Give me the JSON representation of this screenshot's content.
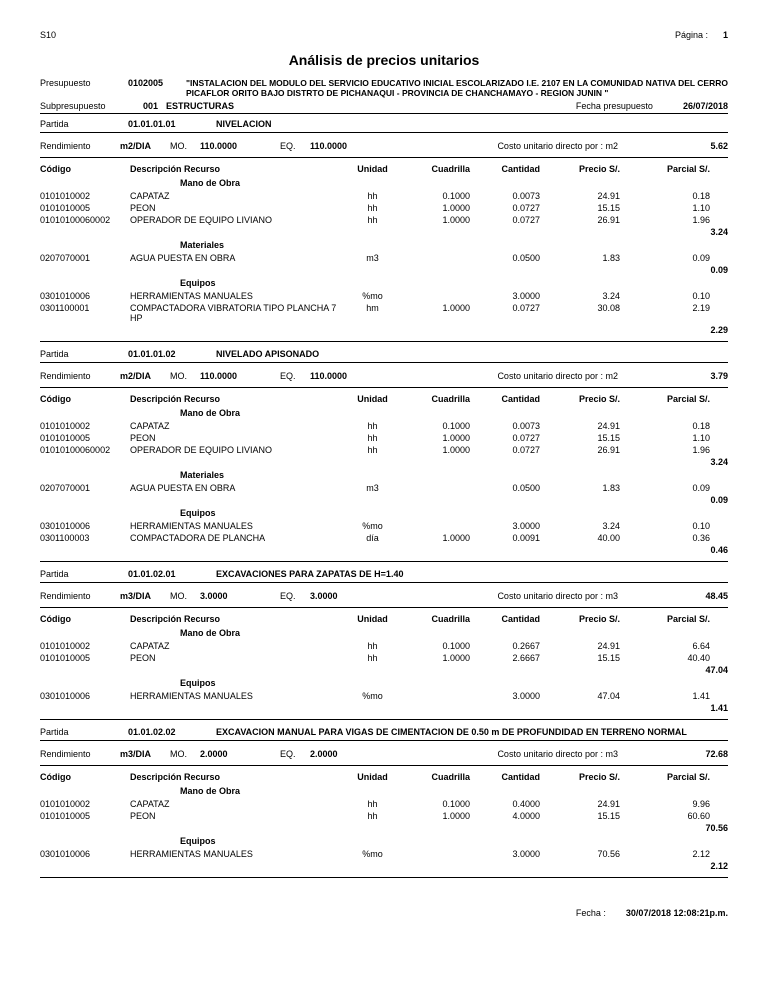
{
  "header": {
    "s10": "S10",
    "pagina_lbl": "Página :",
    "pagina_num": "1",
    "title": "Análisis de precios unitarios",
    "presupuesto_lbl": "Presupuesto",
    "presupuesto_code": "0102005",
    "presupuesto_text": "\"INSTALACION DEL MODULO DEL SERVICIO EDUCATIVO INICIAL ESCOLARIZADO I.E. 2107 EN LA COMUNIDAD NATIVA DEL CERRO PICAFLOR ORITO BAJO DISTRTO DE PICHANAQUI - PROVINCIA DE CHANCHAMAYO - REGION JUNIN \"",
    "sub_lbl": "Subpresupuesto",
    "sub_code": "001",
    "sub_text": "ESTRUCTURAS",
    "fecha_lbl": "Fecha presupuesto",
    "fecha_val": "26/07/2018"
  },
  "labels": {
    "partida": "Partida",
    "rendimiento": "Rendimiento",
    "mo": "MO.",
    "eq": "EQ.",
    "costo_directo": "Costo unitario directo por :",
    "codigo": "Código",
    "descripcion": "Descripción Recurso",
    "unidad": "Unidad",
    "cuadrilla": "Cuadrilla",
    "cantidad": "Cantidad",
    "precio": "Precio S/.",
    "parcial": "Parcial S/.",
    "mano_obra": "Mano de Obra",
    "materiales": "Materiales",
    "equipos": "Equipos"
  },
  "partidas": [
    {
      "code": "01.01.01.01",
      "title": "NIVELACION",
      "unidad_rend": "m2/DIA",
      "mo": "110.0000",
      "eq": "110.0000",
      "costo_unit": "m2",
      "total": "5.62",
      "groups": [
        {
          "cat": "mano_obra",
          "rows": [
            {
              "cod": "0101010002",
              "desc": "CAPATAZ",
              "u": "hh",
              "cuad": "0.1000",
              "cant": "0.0073",
              "prec": "24.91",
              "parc": "0.18"
            },
            {
              "cod": "0101010005",
              "desc": "PEON",
              "u": "hh",
              "cuad": "1.0000",
              "cant": "0.0727",
              "prec": "15.15",
              "parc": "1.10"
            },
            {
              "cod": "01010100060002",
              "desc": "OPERADOR DE EQUIPO LIVIANO",
              "u": "hh",
              "cuad": "1.0000",
              "cant": "0.0727",
              "prec": "26.91",
              "parc": "1.96"
            }
          ],
          "sub": "3.24"
        },
        {
          "cat": "materiales",
          "rows": [
            {
              "cod": "0207070001",
              "desc": "AGUA PUESTA EN OBRA",
              "u": "m3",
              "cuad": "",
              "cant": "0.0500",
              "prec": "1.83",
              "parc": "0.09"
            }
          ],
          "sub": "0.09"
        },
        {
          "cat": "equipos",
          "rows": [
            {
              "cod": "0301010006",
              "desc": "HERRAMIENTAS MANUALES",
              "u": "%mo",
              "cuad": "",
              "cant": "3.0000",
              "prec": "3.24",
              "parc": "0.10"
            },
            {
              "cod": "0301100001",
              "desc": "COMPACTADORA VIBRATORIA TIPO PLANCHA 7 HP",
              "u": "hm",
              "cuad": "1.0000",
              "cant": "0.0727",
              "prec": "30.08",
              "parc": "2.19"
            }
          ],
          "sub": "2.29"
        }
      ]
    },
    {
      "code": "01.01.01.02",
      "title": "NIVELADO APISONADO",
      "unidad_rend": "m2/DIA",
      "mo": "110.0000",
      "eq": "110.0000",
      "costo_unit": "m2",
      "total": "3.79",
      "groups": [
        {
          "cat": "mano_obra",
          "rows": [
            {
              "cod": "0101010002",
              "desc": "CAPATAZ",
              "u": "hh",
              "cuad": "0.1000",
              "cant": "0.0073",
              "prec": "24.91",
              "parc": "0.18"
            },
            {
              "cod": "0101010005",
              "desc": "PEON",
              "u": "hh",
              "cuad": "1.0000",
              "cant": "0.0727",
              "prec": "15.15",
              "parc": "1.10"
            },
            {
              "cod": "01010100060002",
              "desc": "OPERADOR DE EQUIPO LIVIANO",
              "u": "hh",
              "cuad": "1.0000",
              "cant": "0.0727",
              "prec": "26.91",
              "parc": "1.96"
            }
          ],
          "sub": "3.24"
        },
        {
          "cat": "materiales",
          "rows": [
            {
              "cod": "0207070001",
              "desc": "AGUA PUESTA EN OBRA",
              "u": "m3",
              "cuad": "",
              "cant": "0.0500",
              "prec": "1.83",
              "parc": "0.09"
            }
          ],
          "sub": "0.09"
        },
        {
          "cat": "equipos",
          "rows": [
            {
              "cod": "0301010006",
              "desc": "HERRAMIENTAS MANUALES",
              "u": "%mo",
              "cuad": "",
              "cant": "3.0000",
              "prec": "3.24",
              "parc": "0.10"
            },
            {
              "cod": "0301100003",
              "desc": "COMPACTADORA DE PLANCHA",
              "u": "día",
              "cuad": "1.0000",
              "cant": "0.0091",
              "prec": "40.00",
              "parc": "0.36"
            }
          ],
          "sub": "0.46"
        }
      ]
    },
    {
      "code": "01.01.02.01",
      "title": "EXCAVACIONES PARA ZAPATAS DE H=1.40",
      "unidad_rend": "m3/DIA",
      "mo": "3.0000",
      "eq": "3.0000",
      "costo_unit": "m3",
      "total": "48.45",
      "groups": [
        {
          "cat": "mano_obra",
          "rows": [
            {
              "cod": "0101010002",
              "desc": "CAPATAZ",
              "u": "hh",
              "cuad": "0.1000",
              "cant": "0.2667",
              "prec": "24.91",
              "parc": "6.64"
            },
            {
              "cod": "0101010005",
              "desc": "PEON",
              "u": "hh",
              "cuad": "1.0000",
              "cant": "2.6667",
              "prec": "15.15",
              "parc": "40.40"
            }
          ],
          "sub": "47.04"
        },
        {
          "cat": "equipos",
          "rows": [
            {
              "cod": "0301010006",
              "desc": "HERRAMIENTAS MANUALES",
              "u": "%mo",
              "cuad": "",
              "cant": "3.0000",
              "prec": "47.04",
              "parc": "1.41"
            }
          ],
          "sub": "1.41"
        }
      ]
    },
    {
      "code": "01.01.02.02",
      "title": "EXCAVACION MANUAL PARA VIGAS DE CIMENTACION DE 0.50 m DE PROFUNDIDAD EN TERRENO NORMAL",
      "unidad_rend": "m3/DIA",
      "mo": "2.0000",
      "eq": "2.0000",
      "costo_unit": "m3",
      "total": "72.68",
      "groups": [
        {
          "cat": "mano_obra",
          "rows": [
            {
              "cod": "0101010002",
              "desc": "CAPATAZ",
              "u": "hh",
              "cuad": "0.1000",
              "cant": "0.4000",
              "prec": "24.91",
              "parc": "9.96"
            },
            {
              "cod": "0101010005",
              "desc": "PEON",
              "u": "hh",
              "cuad": "1.0000",
              "cant": "4.0000",
              "prec": "15.15",
              "parc": "60.60"
            }
          ],
          "sub": "70.56"
        },
        {
          "cat": "equipos",
          "rows": [
            {
              "cod": "0301010006",
              "desc": "HERRAMIENTAS MANUALES",
              "u": "%mo",
              "cuad": "",
              "cant": "3.0000",
              "prec": "70.56",
              "parc": "2.12"
            }
          ],
          "sub": "2.12"
        }
      ]
    }
  ],
  "footer": {
    "fecha_lbl": "Fecha  :",
    "fecha_val": "30/07/2018  12:08:21p.m."
  }
}
